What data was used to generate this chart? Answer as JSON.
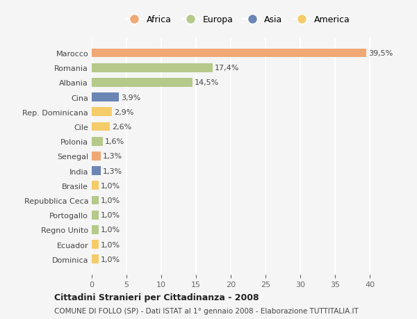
{
  "countries": [
    "Dominica",
    "Ecuador",
    "Regno Unito",
    "Portogallo",
    "Repubblica Ceca",
    "Brasile",
    "India",
    "Senegal",
    "Polonia",
    "Cile",
    "Rep. Dominicana",
    "Cina",
    "Albania",
    "Romania",
    "Marocco"
  ],
  "values": [
    1.0,
    1.0,
    1.0,
    1.0,
    1.0,
    1.0,
    1.3,
    1.3,
    1.6,
    2.6,
    2.9,
    3.9,
    14.5,
    17.4,
    39.5
  ],
  "colors": {
    "Africa": "#F0A875",
    "Europa": "#B5C98A",
    "Asia": "#6B85B5",
    "America": "#F5CC6A"
  },
  "legend_order": [
    "Africa",
    "Europa",
    "Asia",
    "America"
  ],
  "bar_colors_list": [
    "#F5CC6A",
    "#F5CC6A",
    "#B5C98A",
    "#B5C98A",
    "#B5C98A",
    "#F5CC6A",
    "#6B85B5",
    "#F0A875",
    "#B5C98A",
    "#F5CC6A",
    "#F5CC6A",
    "#6B85B5",
    "#B5C98A",
    "#B5C98A",
    "#F0A875"
  ],
  "labels": [
    "1,0%",
    "1,0%",
    "1,0%",
    "1,0%",
    "1,0%",
    "1,0%",
    "1,3%",
    "1,3%",
    "1,6%",
    "2,6%",
    "2,9%",
    "3,9%",
    "14,5%",
    "17,4%",
    "39,5%"
  ],
  "xlim": [
    0,
    42
  ],
  "xticks": [
    0,
    5,
    10,
    15,
    20,
    25,
    30,
    35,
    40
  ],
  "title": "Cittadini Stranieri per Cittadinanza - 2008",
  "subtitle": "COMUNE DI FOLLO (SP) - Dati ISTAT al 1° gennaio 2008 - Elaborazione TUTTITALIA.IT",
  "bg_color": "#F5F5F5",
  "grid_color": "#FFFFFF"
}
